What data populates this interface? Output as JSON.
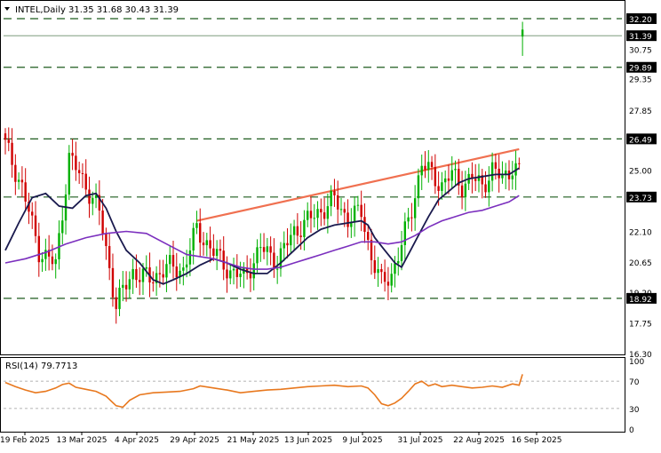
{
  "header": {
    "symbol": "INTEL,Daily",
    "ohlc": "31.35 31.68 30.43 31.39"
  },
  "rsi_header": {
    "label": "RSI(14) 79.7713"
  },
  "colors": {
    "candle_up": "#00b000",
    "candle_down": "#d00000",
    "ma_fast": "#1a1a4e",
    "ma_slow": "#7b2fbe",
    "trendline": "#f07050",
    "rsi_line": "#e8781e",
    "level_line": "#1e5c1e",
    "price_tag_bg": "#000000"
  },
  "chart_data": [
    {
      "type": "line",
      "panel": "price",
      "title": "INTEL,Daily",
      "x_tick_labels": [
        "19 Feb 2025",
        "13 Mar 2025",
        "4 Apr 2025",
        "29 Apr 2025",
        "21 May 2025",
        "13 Jun 2025",
        "9 Jul 2025",
        "31 Jul 2025",
        "22 Aug 2025",
        "16 Sep 2025"
      ],
      "y_tick_labels": [
        "30.75",
        "29.35",
        "27.85",
        "25.00",
        "22.10",
        "20.65",
        "19.20",
        "17.75",
        "16.30"
      ],
      "ylim": [
        16.3,
        33.0
      ],
      "grid": false,
      "last_price": "31.39",
      "horizontal_levels": [
        {
          "label": "32.20",
          "value": 32.2
        },
        {
          "label": "29.89",
          "value": 29.89
        },
        {
          "label": "26.49",
          "value": 26.49
        },
        {
          "label": "23.73",
          "value": 23.73
        },
        {
          "label": "18.92",
          "value": 18.92
        }
      ],
      "trendline": {
        "start": {
          "bar": 57,
          "value": 22.6
        },
        "end": {
          "bar": 153,
          "value": 26.0
        }
      },
      "ohlc_samples": [
        {
          "bar": 0,
          "close": 26.2
        },
        {
          "bar": 5,
          "close": 24.2
        },
        {
          "bar": 10,
          "close": 21.2
        },
        {
          "bar": 15,
          "close": 20.5
        },
        {
          "bar": 19,
          "close": 25.6
        },
        {
          "bar": 24,
          "close": 24.3
        },
        {
          "bar": 28,
          "close": 23.0
        },
        {
          "bar": 33,
          "close": 18.6
        },
        {
          "bar": 38,
          "close": 20.2
        },
        {
          "bar": 43,
          "close": 19.8
        },
        {
          "bar": 48,
          "close": 20.4
        },
        {
          "bar": 53,
          "close": 20.3
        },
        {
          "bar": 57,
          "close": 22.2
        },
        {
          "bar": 62,
          "close": 21.1
        },
        {
          "bar": 67,
          "close": 20.2
        },
        {
          "bar": 71,
          "close": 19.9
        },
        {
          "bar": 76,
          "close": 21.3
        },
        {
          "bar": 81,
          "close": 20.7
        },
        {
          "bar": 86,
          "close": 22.1
        },
        {
          "bar": 90,
          "close": 22.6
        },
        {
          "bar": 94,
          "close": 23.1
        },
        {
          "bar": 98,
          "close": 23.6
        },
        {
          "bar": 102,
          "close": 22.7
        },
        {
          "bar": 106,
          "close": 23.0
        },
        {
          "bar": 109,
          "close": 20.9
        },
        {
          "bar": 112,
          "close": 19.6
        },
        {
          "bar": 115,
          "close": 20.1
        },
        {
          "bar": 118,
          "close": 21.4
        },
        {
          "bar": 121,
          "close": 23.2
        },
        {
          "bar": 124,
          "close": 25.3
        },
        {
          "bar": 127,
          "close": 24.8
        },
        {
          "bar": 130,
          "close": 24.3
        },
        {
          "bar": 133,
          "close": 24.8
        },
        {
          "bar": 136,
          "close": 24.3
        },
        {
          "bar": 139,
          "close": 24.6
        },
        {
          "bar": 142,
          "close": 24.3
        },
        {
          "bar": 145,
          "close": 25.0
        },
        {
          "bar": 148,
          "close": 24.6
        },
        {
          "bar": 151,
          "close": 25.2
        },
        {
          "bar": 153,
          "close": 24.9
        },
        {
          "bar": 154,
          "close": 31.39
        }
      ],
      "series": [
        {
          "name": "",
          "role": "fast moving average",
          "points": [
            [
              0,
              21.2
            ],
            [
              4,
              22.5
            ],
            [
              8,
              23.7
            ],
            [
              12,
              23.9
            ],
            [
              16,
              23.3
            ],
            [
              20,
              23.2
            ],
            [
              24,
              23.8
            ],
            [
              27,
              23.9
            ],
            [
              30,
              23.2
            ],
            [
              33,
              22.1
            ],
            [
              36,
              21.2
            ],
            [
              40,
              20.6
            ],
            [
              44,
              19.8
            ],
            [
              47,
              19.6
            ],
            [
              50,
              19.8
            ],
            [
              54,
              20.1
            ],
            [
              58,
              20.5
            ],
            [
              62,
              20.8
            ],
            [
              66,
              20.6
            ],
            [
              70,
              20.3
            ],
            [
              74,
              20.1
            ],
            [
              78,
              20.1
            ],
            [
              82,
              20.6
            ],
            [
              86,
              21.2
            ],
            [
              90,
              21.8
            ],
            [
              94,
              22.2
            ],
            [
              98,
              22.4
            ],
            [
              102,
              22.5
            ],
            [
              106,
              22.6
            ],
            [
              108,
              22.4
            ],
            [
              110,
              21.8
            ],
            [
              113,
              21.2
            ],
            [
              116,
              20.6
            ],
            [
              118,
              20.4
            ],
            [
              120,
              21.0
            ],
            [
              123,
              21.9
            ],
            [
              126,
              22.8
            ],
            [
              129,
              23.6
            ],
            [
              132,
              24.0
            ],
            [
              135,
              24.4
            ],
            [
              138,
              24.6
            ],
            [
              142,
              24.7
            ],
            [
              146,
              24.8
            ],
            [
              150,
              24.8
            ],
            [
              153,
              25.1
            ]
          ]
        },
        {
          "name": "",
          "role": "slow moving average",
          "points": [
            [
              0,
              20.6
            ],
            [
              6,
              20.8
            ],
            [
              12,
              21.1
            ],
            [
              18,
              21.5
            ],
            [
              24,
              21.8
            ],
            [
              30,
              22.0
            ],
            [
              36,
              22.1
            ],
            [
              42,
              22.0
            ],
            [
              48,
              21.5
            ],
            [
              54,
              21.0
            ],
            [
              58,
              20.9
            ],
            [
              62,
              20.8
            ],
            [
              66,
              20.6
            ],
            [
              70,
              20.4
            ],
            [
              74,
              20.3
            ],
            [
              78,
              20.3
            ],
            [
              82,
              20.4
            ],
            [
              86,
              20.6
            ],
            [
              90,
              20.8
            ],
            [
              94,
              21.0
            ],
            [
              98,
              21.2
            ],
            [
              102,
              21.4
            ],
            [
              106,
              21.6
            ],
            [
              110,
              21.6
            ],
            [
              114,
              21.5
            ],
            [
              118,
              21.6
            ],
            [
              122,
              21.9
            ],
            [
              126,
              22.3
            ],
            [
              130,
              22.6
            ],
            [
              134,
              22.8
            ],
            [
              138,
              23.0
            ],
            [
              142,
              23.1
            ],
            [
              146,
              23.3
            ],
            [
              150,
              23.5
            ],
            [
              153,
              23.8
            ]
          ]
        }
      ]
    },
    {
      "type": "line",
      "panel": "indicator",
      "title": "RSI(14) 79.7713",
      "y_tick_labels": [
        "100",
        "70",
        "30",
        "0"
      ],
      "ylim": [
        0,
        100
      ],
      "reference_levels": [
        70,
        30
      ],
      "series": [
        {
          "name": "RSI(14)",
          "values": [
            [
              0,
              68
            ],
            [
              3,
              62
            ],
            [
              6,
              57
            ],
            [
              9,
              53
            ],
            [
              12,
              55
            ],
            [
              15,
              60
            ],
            [
              17,
              65
            ],
            [
              19,
              67
            ],
            [
              21,
              61
            ],
            [
              24,
              58
            ],
            [
              27,
              55
            ],
            [
              30,
              48
            ],
            [
              33,
              34
            ],
            [
              35,
              32
            ],
            [
              37,
              42
            ],
            [
              40,
              50
            ],
            [
              44,
              53
            ],
            [
              48,
              54
            ],
            [
              52,
              55
            ],
            [
              56,
              59
            ],
            [
              58,
              63
            ],
            [
              62,
              60
            ],
            [
              66,
              57
            ],
            [
              70,
              53
            ],
            [
              74,
              55
            ],
            [
              78,
              57
            ],
            [
              82,
              58
            ],
            [
              86,
              60
            ],
            [
              90,
              62
            ],
            [
              94,
              63
            ],
            [
              98,
              64
            ],
            [
              102,
              62
            ],
            [
              106,
              63
            ],
            [
              108,
              60
            ],
            [
              110,
              50
            ],
            [
              112,
              37
            ],
            [
              114,
              34
            ],
            [
              116,
              38
            ],
            [
              118,
              45
            ],
            [
              120,
              55
            ],
            [
              122,
              66
            ],
            [
              124,
              70
            ],
            [
              126,
              63
            ],
            [
              128,
              66
            ],
            [
              130,
              62
            ],
            [
              133,
              64
            ],
            [
              136,
              62
            ],
            [
              139,
              60
            ],
            [
              142,
              61
            ],
            [
              145,
              63
            ],
            [
              148,
              61
            ],
            [
              151,
              66
            ],
            [
              153,
              64
            ],
            [
              154,
              80
            ]
          ]
        }
      ]
    }
  ]
}
